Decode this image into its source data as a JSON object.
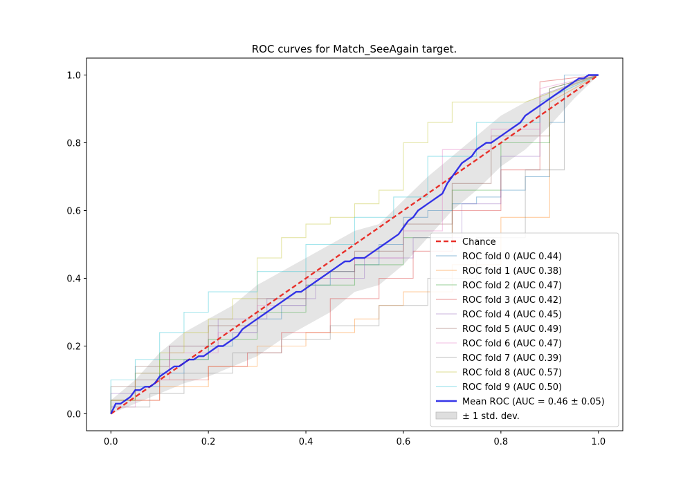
{
  "chart_data": {
    "type": "line",
    "title": "ROC curves for Match_SeeAgain target.",
    "xlabel": "",
    "ylabel": "",
    "xlim": [
      -0.05,
      1.05
    ],
    "ylim": [
      -0.05,
      1.05
    ],
    "x_ticks": [
      0.0,
      0.2,
      0.4,
      0.6,
      0.8,
      1.0
    ],
    "y_ticks": [
      0.0,
      0.2,
      0.4,
      0.6,
      0.8,
      1.0
    ],
    "x_tick_labels": [
      "0.0",
      "0.2",
      "0.4",
      "0.6",
      "0.8",
      "1.0"
    ],
    "y_tick_labels": [
      "0.0",
      "0.2",
      "0.4",
      "0.6",
      "0.8",
      "1.0"
    ],
    "grid": false,
    "legend_position": "lower-right",
    "chance": {
      "name": "Chance",
      "color": "#e8302a",
      "x": [
        0,
        1
      ],
      "y": [
        0,
        1
      ]
    },
    "folds": [
      {
        "name": "ROC fold 0 (AUC 0.44)",
        "color": "#1f77b4",
        "x": [
          0,
          0,
          0.05,
          0.05,
          0.1,
          0.1,
          0.15,
          0.15,
          0.2,
          0.2,
          0.25,
          0.25,
          0.3,
          0.3,
          0.35,
          0.35,
          0.4,
          0.4,
          0.45,
          0.45,
          0.5,
          0.5,
          0.55,
          0.55,
          0.6,
          0.6,
          0.65,
          0.65,
          0.7,
          0.7,
          0.75,
          0.75,
          0.8,
          0.8,
          0.85,
          0.85,
          0.9,
          0.9,
          0.93,
          0.93,
          1
        ],
        "y": [
          0,
          0.04,
          0.04,
          0.08,
          0.08,
          0.12,
          0.12,
          0.16,
          0.16,
          0.2,
          0.2,
          0.24,
          0.24,
          0.28,
          0.28,
          0.32,
          0.32,
          0.38,
          0.38,
          0.42,
          0.42,
          0.44,
          0.44,
          0.5,
          0.5,
          0.58,
          0.58,
          0.6,
          0.6,
          0.62,
          0.62,
          0.64,
          0.64,
          0.66,
          0.66,
          0.7,
          0.7,
          0.86,
          0.86,
          1,
          1
        ]
      },
      {
        "name": "ROC fold 1 (AUC 0.38)",
        "color": "#ff7f0e",
        "x": [
          0,
          0,
          0.1,
          0.1,
          0.2,
          0.2,
          0.3,
          0.3,
          0.4,
          0.4,
          0.5,
          0.5,
          0.55,
          0.55,
          0.6,
          0.6,
          0.7,
          0.7,
          0.8,
          0.8,
          0.9,
          0.9,
          1
        ],
        "y": [
          0,
          0.04,
          0.04,
          0.08,
          0.08,
          0.14,
          0.14,
          0.2,
          0.2,
          0.24,
          0.24,
          0.28,
          0.28,
          0.32,
          0.32,
          0.36,
          0.36,
          0.44,
          0.44,
          0.58,
          0.58,
          0.92,
          1
        ]
      },
      {
        "name": "ROC fold 2 (AUC 0.47)",
        "color": "#2ca02c",
        "x": [
          0,
          0,
          0.05,
          0.05,
          0.1,
          0.1,
          0.2,
          0.2,
          0.3,
          0.3,
          0.4,
          0.4,
          0.5,
          0.5,
          0.6,
          0.6,
          0.7,
          0.7,
          0.8,
          0.8,
          0.9,
          0.9,
          1
        ],
        "y": [
          0,
          0.04,
          0.04,
          0.1,
          0.1,
          0.16,
          0.16,
          0.22,
          0.22,
          0.3,
          0.3,
          0.38,
          0.38,
          0.44,
          0.44,
          0.52,
          0.52,
          0.66,
          0.66,
          0.8,
          0.8,
          0.96,
          1
        ]
      },
      {
        "name": "ROC fold 3 (AUC 0.42)",
        "color": "#d62728",
        "x": [
          0,
          0,
          0.1,
          0.1,
          0.2,
          0.2,
          0.28,
          0.28,
          0.35,
          0.35,
          0.45,
          0.45,
          0.55,
          0.55,
          0.62,
          0.62,
          0.7,
          0.7,
          0.8,
          0.8,
          0.88,
          0.88,
          1
        ],
        "y": [
          0,
          0.04,
          0.04,
          0.1,
          0.1,
          0.14,
          0.14,
          0.18,
          0.18,
          0.24,
          0.24,
          0.34,
          0.34,
          0.4,
          0.4,
          0.48,
          0.48,
          0.6,
          0.6,
          0.72,
          0.72,
          0.98,
          1
        ]
      },
      {
        "name": "ROC fold 4 (AUC 0.45)",
        "color": "#9467bd",
        "x": [
          0,
          0,
          0.05,
          0.05,
          0.12,
          0.12,
          0.22,
          0.22,
          0.32,
          0.32,
          0.42,
          0.42,
          0.52,
          0.52,
          0.62,
          0.62,
          0.72,
          0.72,
          0.8,
          0.8,
          0.88,
          0.88,
          1
        ],
        "y": [
          0,
          0.06,
          0.06,
          0.12,
          0.12,
          0.2,
          0.2,
          0.28,
          0.28,
          0.34,
          0.34,
          0.4,
          0.4,
          0.46,
          0.46,
          0.52,
          0.52,
          0.62,
          0.62,
          0.76,
          0.76,
          0.94,
          1
        ]
      },
      {
        "name": "ROC fold 5 (AUC 0.49)",
        "color": "#8c564b",
        "x": [
          0,
          0,
          0.05,
          0.05,
          0.12,
          0.12,
          0.2,
          0.2,
          0.3,
          0.3,
          0.4,
          0.4,
          0.5,
          0.5,
          0.6,
          0.6,
          0.7,
          0.7,
          0.78,
          0.78,
          0.9,
          0.9,
          1
        ],
        "y": [
          0,
          0.08,
          0.08,
          0.14,
          0.14,
          0.2,
          0.2,
          0.26,
          0.26,
          0.34,
          0.34,
          0.42,
          0.42,
          0.48,
          0.48,
          0.56,
          0.56,
          0.68,
          0.68,
          0.82,
          0.82,
          0.96,
          1
        ]
      },
      {
        "name": "ROC fold 6 (AUC 0.47)",
        "color": "#e377c2",
        "x": [
          0,
          0,
          0.05,
          0.05,
          0.12,
          0.12,
          0.22,
          0.22,
          0.3,
          0.3,
          0.4,
          0.4,
          0.5,
          0.5,
          0.6,
          0.6,
          0.68,
          0.68,
          0.78,
          0.78,
          0.88,
          0.88,
          1
        ],
        "y": [
          0,
          0.02,
          0.02,
          0.1,
          0.1,
          0.18,
          0.18,
          0.24,
          0.24,
          0.32,
          0.32,
          0.4,
          0.4,
          0.46,
          0.46,
          0.54,
          0.54,
          0.78,
          0.78,
          0.84,
          0.84,
          0.96,
          1
        ]
      },
      {
        "name": "ROC fold 7 (AUC 0.39)",
        "color": "#7f7f7f",
        "x": [
          0,
          0,
          0.08,
          0.08,
          0.15,
          0.15,
          0.25,
          0.25,
          0.35,
          0.35,
          0.45,
          0.45,
          0.55,
          0.55,
          0.65,
          0.65,
          0.75,
          0.75,
          0.85,
          0.85,
          0.93,
          0.93,
          1
        ],
        "y": [
          0,
          0.02,
          0.02,
          0.06,
          0.06,
          0.12,
          0.12,
          0.18,
          0.18,
          0.22,
          0.22,
          0.26,
          0.26,
          0.32,
          0.32,
          0.4,
          0.4,
          0.52,
          0.52,
          0.72,
          0.72,
          0.96,
          1
        ]
      },
      {
        "name": "ROC fold 8 (AUC 0.57)",
        "color": "#bcbd22",
        "x": [
          0,
          0,
          0.05,
          0.05,
          0.1,
          0.1,
          0.15,
          0.15,
          0.2,
          0.2,
          0.25,
          0.25,
          0.3,
          0.3,
          0.35,
          0.35,
          0.4,
          0.4,
          0.45,
          0.45,
          0.5,
          0.5,
          0.55,
          0.55,
          0.6,
          0.6,
          0.65,
          0.65,
          0.7,
          0.7,
          0.75,
          0.75,
          0.85,
          0.85,
          1
        ],
        "y": [
          0,
          0.04,
          0.04,
          0.12,
          0.12,
          0.18,
          0.18,
          0.24,
          0.24,
          0.28,
          0.28,
          0.34,
          0.34,
          0.46,
          0.46,
          0.52,
          0.52,
          0.56,
          0.56,
          0.58,
          0.58,
          0.62,
          0.62,
          0.66,
          0.66,
          0.8,
          0.8,
          0.86,
          0.86,
          0.92,
          0.92,
          0.92,
          0.92,
          0.92,
          1
        ]
      },
      {
        "name": "ROC fold 9 (AUC 0.50)",
        "color": "#17becf",
        "x": [
          0,
          0,
          0.05,
          0.05,
          0.1,
          0.1,
          0.15,
          0.15,
          0.2,
          0.2,
          0.3,
          0.3,
          0.4,
          0.4,
          0.5,
          0.5,
          0.58,
          0.58,
          0.65,
          0.65,
          0.75,
          0.75,
          0.88,
          0.88,
          1
        ],
        "y": [
          0,
          0.1,
          0.1,
          0.16,
          0.16,
          0.24,
          0.24,
          0.3,
          0.3,
          0.36,
          0.36,
          0.42,
          0.42,
          0.5,
          0.5,
          0.58,
          0.58,
          0.64,
          0.64,
          0.76,
          0.76,
          0.86,
          0.86,
          0.92,
          1
        ]
      }
    ],
    "mean": {
      "name": "Mean ROC (AUC = 0.46 ± 0.05)",
      "color": "#1f1fe6",
      "x": [
        0,
        0.01,
        0.02,
        0.03,
        0.04,
        0.05,
        0.06,
        0.07,
        0.08,
        0.09,
        0.1,
        0.11,
        0.12,
        0.13,
        0.14,
        0.15,
        0.16,
        0.17,
        0.18,
        0.19,
        0.2,
        0.21,
        0.22,
        0.23,
        0.24,
        0.25,
        0.26,
        0.27,
        0.28,
        0.29,
        0.3,
        0.31,
        0.32,
        0.33,
        0.34,
        0.35,
        0.36,
        0.37,
        0.38,
        0.39,
        0.4,
        0.41,
        0.42,
        0.43,
        0.44,
        0.45,
        0.46,
        0.47,
        0.48,
        0.49,
        0.5,
        0.51,
        0.52,
        0.53,
        0.54,
        0.55,
        0.56,
        0.57,
        0.58,
        0.59,
        0.6,
        0.61,
        0.62,
        0.63,
        0.64,
        0.65,
        0.66,
        0.67,
        0.68,
        0.69,
        0.7,
        0.71,
        0.72,
        0.73,
        0.74,
        0.75,
        0.76,
        0.77,
        0.78,
        0.79,
        0.8,
        0.81,
        0.82,
        0.83,
        0.84,
        0.85,
        0.86,
        0.87,
        0.88,
        0.89,
        0.9,
        0.91,
        0.92,
        0.93,
        0.94,
        0.95,
        0.96,
        0.97,
        0.98,
        0.99,
        1
      ],
      "y": [
        0,
        0.03,
        0.03,
        0.04,
        0.05,
        0.07,
        0.07,
        0.08,
        0.08,
        0.09,
        0.11,
        0.12,
        0.13,
        0.14,
        0.14,
        0.15,
        0.16,
        0.16,
        0.17,
        0.17,
        0.18,
        0.19,
        0.2,
        0.2,
        0.21,
        0.22,
        0.23,
        0.25,
        0.26,
        0.27,
        0.28,
        0.29,
        0.3,
        0.31,
        0.32,
        0.33,
        0.34,
        0.35,
        0.36,
        0.36,
        0.37,
        0.38,
        0.39,
        0.4,
        0.41,
        0.42,
        0.43,
        0.44,
        0.45,
        0.45,
        0.46,
        0.46,
        0.46,
        0.47,
        0.48,
        0.49,
        0.5,
        0.51,
        0.52,
        0.53,
        0.55,
        0.57,
        0.58,
        0.6,
        0.61,
        0.62,
        0.63,
        0.64,
        0.65,
        0.68,
        0.7,
        0.72,
        0.74,
        0.75,
        0.76,
        0.78,
        0.79,
        0.8,
        0.8,
        0.81,
        0.82,
        0.83,
        0.84,
        0.85,
        0.86,
        0.88,
        0.89,
        0.9,
        0.91,
        0.92,
        0.93,
        0.94,
        0.95,
        0.96,
        0.97,
        0.98,
        0.99,
        0.99,
        1,
        1,
        1
      ]
    },
    "std_band": {
      "name": "± 1 std. dev.",
      "color": "#bdbdbd",
      "x": [
        0,
        0.05,
        0.1,
        0.15,
        0.2,
        0.25,
        0.3,
        0.35,
        0.4,
        0.45,
        0.5,
        0.55,
        0.6,
        0.65,
        0.7,
        0.75,
        0.8,
        0.85,
        0.9,
        0.95,
        1
      ],
      "upper": [
        0.04,
        0.1,
        0.18,
        0.24,
        0.28,
        0.32,
        0.38,
        0.42,
        0.46,
        0.5,
        0.54,
        0.56,
        0.63,
        0.7,
        0.76,
        0.82,
        0.88,
        0.92,
        0.95,
        0.98,
        1
      ],
      "lower": [
        0,
        0.03,
        0.06,
        0.09,
        0.11,
        0.14,
        0.17,
        0.22,
        0.26,
        0.3,
        0.36,
        0.38,
        0.44,
        0.52,
        0.6,
        0.66,
        0.73,
        0.78,
        0.85,
        0.93,
        1
      ]
    }
  }
}
